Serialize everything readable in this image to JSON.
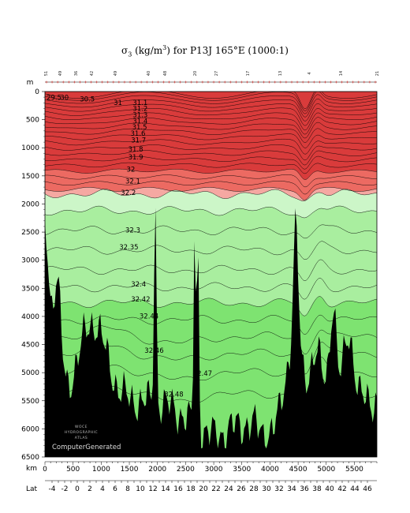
{
  "title": {
    "sym": "σ",
    "sub": "3",
    "mid": " (kg/m",
    "sup": "3",
    "rest": ") for P13J 165°E (1000:1)"
  },
  "axis_labels": {
    "depth_unit": "m",
    "km_unit": "km",
    "lat_unit": "Lat"
  },
  "watermark": {
    "line1": "WOCE",
    "line2": "HYDROGRAPHIC",
    "line3": "ATLAS",
    "credit": "ComputerGenerated"
  },
  "colors": {
    "red_dark": "#d93b3b",
    "red_mid": "#ec6a62",
    "pink": "#f5a8a2",
    "green_light": "#ccf6c8",
    "green_mid": "#a9ee9f",
    "green_deep": "#7ee371",
    "bottom": "#000000"
  },
  "chart_data": {
    "type": "contour-section",
    "variable": "σ3 (kg/m3)",
    "depth_ticks": [
      0,
      500,
      1000,
      1500,
      2000,
      2500,
      3000,
      3500,
      4000,
      4500,
      5000,
      5500,
      6000,
      6500
    ],
    "km_ticks": [
      0,
      500,
      1000,
      1500,
      2000,
      2500,
      3000,
      3500,
      4000,
      4500,
      5000,
      5500
    ],
    "lat_ticks": [
      "-4",
      "-2",
      "0",
      "2",
      "4",
      "6",
      "8",
      "10",
      "12",
      "14",
      "16",
      "18",
      "20",
      "22",
      "24",
      "26",
      "28",
      "30",
      "32",
      "34",
      "36",
      "38",
      "40",
      "42",
      "44",
      "46"
    ],
    "depth_range": [
      0,
      6500
    ],
    "km_range": [
      0,
      5900
    ],
    "station_numbers": [
      "51",
      "49",
      "36",
      "42",
      "49",
      "40",
      "48",
      "20",
      "27",
      "17",
      "13",
      "4",
      "14",
      "21"
    ],
    "contour_labels": [
      {
        "text": "29.5",
        "km": 30,
        "depth": 160
      },
      {
        "text": "30",
        "km": 270,
        "depth": 160
      },
      {
        "text": "30.5",
        "km": 620,
        "depth": 190
      },
      {
        "text": "31",
        "km": 1220,
        "depth": 250
      },
      {
        "text": "31.1",
        "km": 1560,
        "depth": 250
      },
      {
        "text": "31.2",
        "km": 1560,
        "depth": 360
      },
      {
        "text": "31.3",
        "km": 1560,
        "depth": 470
      },
      {
        "text": "31.4",
        "km": 1560,
        "depth": 580
      },
      {
        "text": "31.5",
        "km": 1550,
        "depth": 690
      },
      {
        "text": "31.6",
        "km": 1520,
        "depth": 800
      },
      {
        "text": "31.7",
        "km": 1530,
        "depth": 920
      },
      {
        "text": "31.8",
        "km": 1480,
        "depth": 1080
      },
      {
        "text": "31.9",
        "km": 1480,
        "depth": 1220
      },
      {
        "text": "32",
        "km": 1450,
        "depth": 1440
      },
      {
        "text": "32.1",
        "km": 1430,
        "depth": 1650
      },
      {
        "text": "32.2",
        "km": 1350,
        "depth": 1850
      },
      {
        "text": "32.3",
        "km": 1430,
        "depth": 2520
      },
      {
        "text": "32.35",
        "km": 1320,
        "depth": 2820
      },
      {
        "text": "32.4",
        "km": 1530,
        "depth": 3480
      },
      {
        "text": "32.42",
        "km": 1530,
        "depth": 3750
      },
      {
        "text": "32.44",
        "km": 1680,
        "depth": 4050
      },
      {
        "text": "32.46",
        "km": 1770,
        "depth": 4660
      },
      {
        "text": "32.47",
        "km": 2630,
        "depth": 5070
      },
      {
        "text": "32.48",
        "km": 2120,
        "depth": 5440
      }
    ],
    "filled_bands": [
      {
        "from": "top",
        "to": "31.8",
        "color": "red_dark"
      },
      {
        "from": "31.8",
        "to": "32",
        "color": "red_mid"
      },
      {
        "from": "32",
        "to": "32.2",
        "color": "pink"
      },
      {
        "from": "32.2",
        "to": "32.3",
        "color": "green_light"
      },
      {
        "from": "32.3",
        "to": "32.44",
        "color": "green_mid"
      },
      {
        "from": "32.44",
        "to": "bottom",
        "color": "green_deep"
      }
    ]
  }
}
